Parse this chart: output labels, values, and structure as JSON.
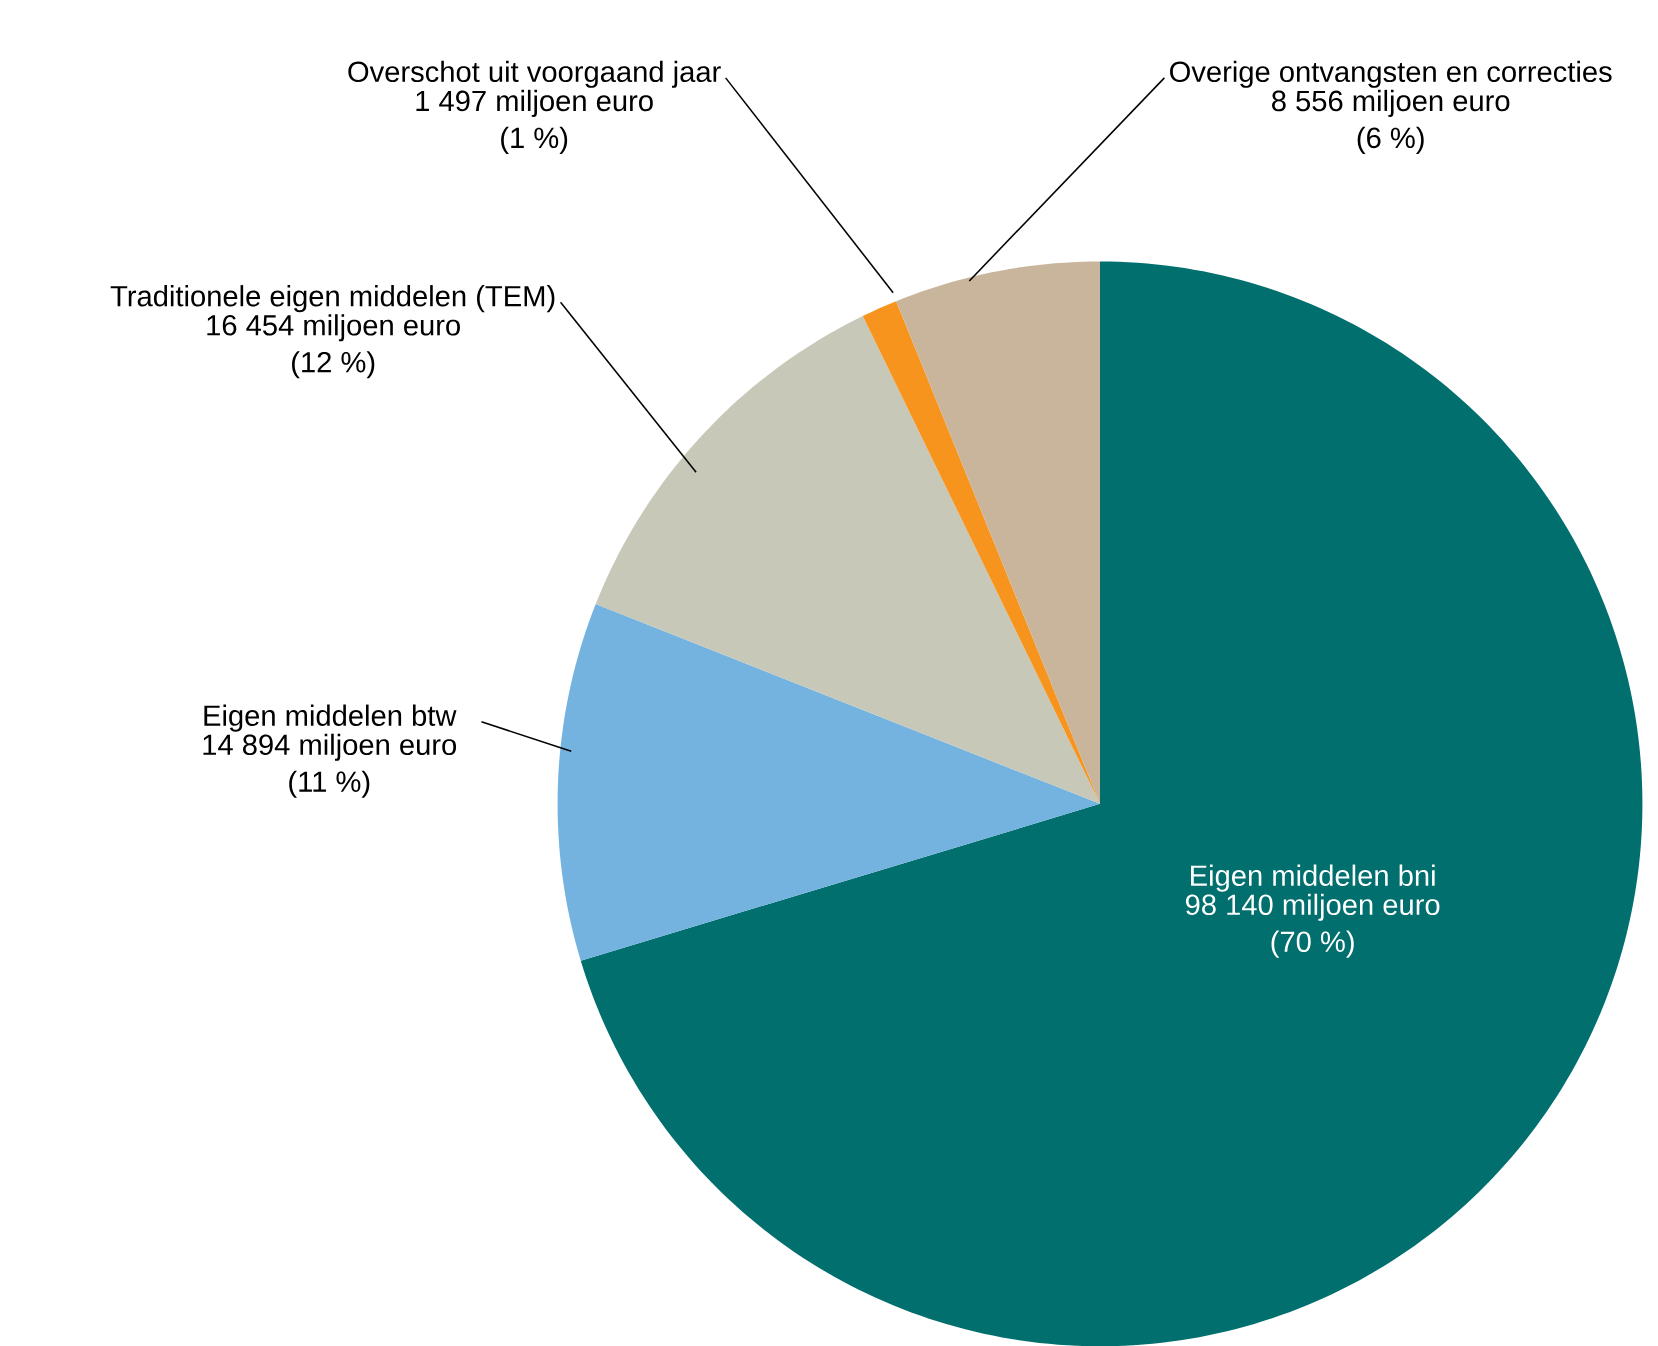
{
  "chart_data": {
    "type": "pie",
    "categories": [
      "Eigen middelen bni",
      "Eigen middelen btw",
      "Traditionele eigen middelen (TEM)",
      "Overschot uit voorgaand jaar",
      "Overige ontvangsten en correcties"
    ],
    "values": [
      98140,
      14894,
      16454,
      1497,
      8556
    ],
    "value_labels": [
      "98 140 miljoen euro (70 %)",
      "14 894 miljoen euro (11 %)",
      "16 454 miljoen euro (12 %)",
      "1 497 miljoen euro (1 %)",
      "8 556 miljoen euro (6 %)"
    ],
    "colors": [
      "#006f6e",
      "#74b3e0",
      "#c8c8b9",
      "#f7941d",
      "#c9b59c"
    ]
  }
}
